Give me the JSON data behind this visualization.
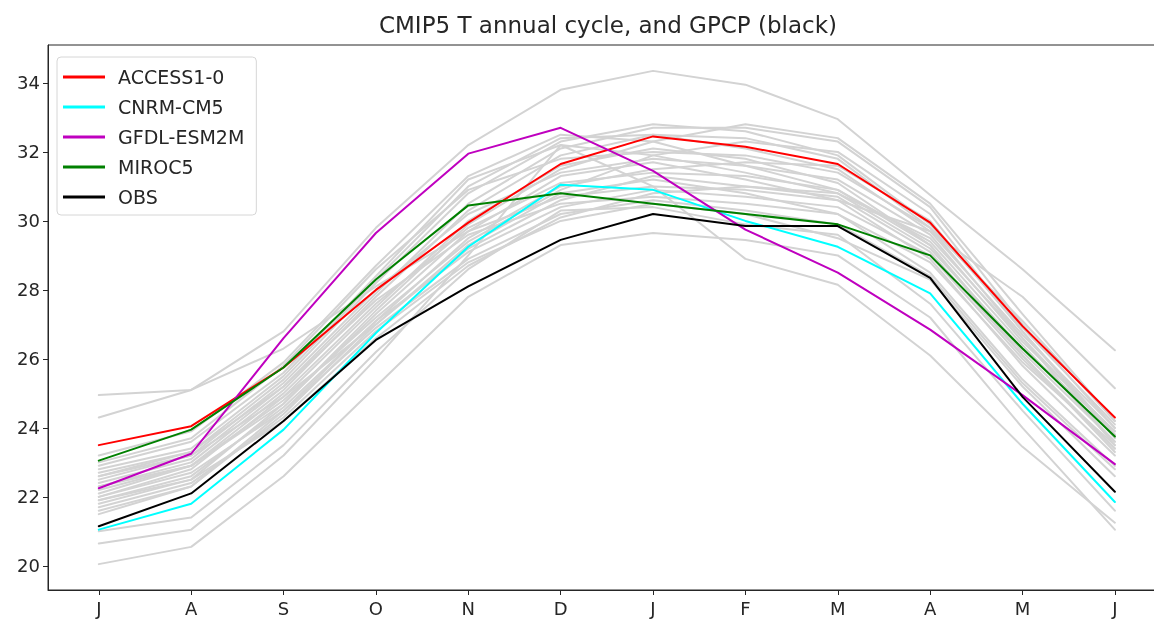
{
  "chart_data": {
    "type": "line",
    "title": "CMIP5 T annual cycle, and GPCP (black)",
    "categories": [
      "J",
      "A",
      "S",
      "O",
      "N",
      "D",
      "J",
      "F",
      "M",
      "A",
      "M",
      "J"
    ],
    "ylim": [
      19.3,
      35.1
    ],
    "yticks": [
      20,
      22,
      24,
      26,
      28,
      30,
      32,
      34
    ],
    "legend": "top left",
    "series": [
      {
        "color": "#d3d3d3",
        "values": [
          24.3,
          25.1,
          26.8,
          29.8,
          32.2,
          33.8,
          34.35,
          33.95,
          32.95,
          30.75,
          28.6,
          26.25
        ]
      },
      {
        "color": "#d3d3d3",
        "values": [
          24.95,
          25.1,
          26.3,
          28.1,
          29.7,
          30.7,
          31.0,
          30.9,
          30.6,
          29.7,
          27.8,
          25.15
        ]
      },
      {
        "color": "#d3d3d3",
        "values": [
          20.05,
          20.55,
          22.6,
          25.2,
          27.8,
          29.3,
          29.65,
          29.45,
          29.0,
          27.2,
          24.0,
          21.05
        ]
      },
      {
        "color": "#d3d3d3",
        "values": [
          20.65,
          21.05,
          23.2,
          26.0,
          29.0,
          32.2,
          31.0,
          28.9,
          28.15,
          26.1,
          23.45,
          21.25
        ]
      },
      {
        "color": "#d3d3d3",
        "values": [
          21.0,
          21.4,
          23.5,
          26.2,
          28.6,
          30.3,
          30.4,
          29.9,
          29.6,
          27.6,
          24.5,
          21.6
        ]
      },
      {
        "color": "#d3d3d3",
        "values": [
          21.6,
          22.3,
          24.4,
          27.0,
          29.3,
          30.8,
          31.2,
          30.8,
          30.2,
          28.5,
          25.4,
          22.9
        ]
      },
      {
        "color": "#d3d3d3",
        "values": [
          21.8,
          22.5,
          24.7,
          27.3,
          29.7,
          31.3,
          31.7,
          31.2,
          30.6,
          28.9,
          25.8,
          23.2
        ]
      },
      {
        "color": "#d3d3d3",
        "values": [
          21.9,
          22.6,
          24.6,
          27.1,
          29.1,
          30.4,
          30.9,
          30.7,
          30.4,
          29.0,
          26.0,
          23.4
        ]
      },
      {
        "color": "#d3d3d3",
        "values": [
          22.0,
          22.8,
          24.9,
          27.5,
          30.0,
          31.6,
          32.1,
          31.8,
          31.1,
          29.3,
          26.1,
          23.4
        ]
      },
      {
        "color": "#d3d3d3",
        "values": [
          22.1,
          22.9,
          25.0,
          27.6,
          29.8,
          31.1,
          31.4,
          31.3,
          30.9,
          29.4,
          26.4,
          23.6
        ]
      },
      {
        "color": "#d3d3d3",
        "values": [
          22.2,
          22.9,
          24.8,
          27.2,
          29.4,
          30.9,
          31.9,
          32.3,
          32.0,
          30.2,
          26.8,
          23.7
        ]
      },
      {
        "color": "#d3d3d3",
        "values": [
          22.3,
          23.0,
          25.1,
          27.8,
          30.3,
          31.9,
          32.5,
          32.4,
          31.8,
          29.8,
          26.6,
          23.8
        ]
      },
      {
        "color": "#d3d3d3",
        "values": [
          22.4,
          23.1,
          25.2,
          27.9,
          30.5,
          32.1,
          32.7,
          32.7,
          32.3,
          30.4,
          27.0,
          24.0
        ]
      },
      {
        "color": "#d3d3d3",
        "values": [
          22.5,
          23.2,
          25.3,
          28.0,
          30.2,
          31.4,
          31.8,
          31.6,
          31.2,
          29.6,
          26.5,
          23.9
        ]
      },
      {
        "color": "#d3d3d3",
        "values": [
          22.6,
          23.3,
          25.4,
          28.2,
          30.8,
          32.3,
          32.8,
          32.6,
          31.9,
          29.9,
          26.9,
          24.1
        ]
      },
      {
        "color": "#d3d3d3",
        "values": [
          22.7,
          23.3,
          25.2,
          27.7,
          29.6,
          30.5,
          30.7,
          30.5,
          30.2,
          28.8,
          25.9,
          23.5
        ]
      },
      {
        "color": "#d3d3d3",
        "values": [
          22.8,
          23.4,
          25.5,
          28.3,
          31.0,
          32.4,
          32.5,
          32.1,
          31.5,
          29.7,
          26.7,
          24.0
        ]
      },
      {
        "color": "#d3d3d3",
        "values": [
          22.9,
          23.6,
          25.6,
          28.4,
          31.2,
          32.2,
          31.9,
          31.4,
          30.8,
          29.2,
          26.3,
          23.9
        ]
      },
      {
        "color": "#d3d3d3",
        "values": [
          22.0,
          22.7,
          24.5,
          26.9,
          28.9,
          30.2,
          30.6,
          30.3,
          29.9,
          28.4,
          25.3,
          22.8
        ]
      },
      {
        "color": "#d3d3d3",
        "values": [
          21.7,
          22.4,
          24.3,
          26.8,
          28.8,
          30.0,
          30.5,
          30.2,
          29.5,
          28.3,
          25.2,
          22.6
        ]
      },
      {
        "color": "#d3d3d3",
        "values": [
          23.0,
          23.7,
          25.8,
          28.6,
          30.9,
          31.8,
          32.0,
          31.9,
          31.4,
          29.8,
          27.1,
          24.2
        ]
      },
      {
        "color": "#d3d3d3",
        "values": [
          22.3,
          22.9,
          24.7,
          27.4,
          29.9,
          31.5,
          32.3,
          32.8,
          32.4,
          30.5,
          27.3,
          24.2
        ]
      },
      {
        "color": "#d3d3d3",
        "values": [
          21.5,
          22.3,
          24.5,
          27.1,
          29.5,
          31.0,
          31.5,
          31.7,
          31.6,
          30.0,
          26.8,
          23.8
        ]
      },
      {
        "color": "#d3d3d3",
        "values": [
          23.2,
          23.9,
          25.9,
          28.7,
          31.3,
          32.5,
          32.3,
          31.6,
          30.9,
          29.3,
          26.2,
          23.6
        ]
      },
      {
        "color": "#d3d3d3",
        "values": [
          22.6,
          23.2,
          24.9,
          27.0,
          29.2,
          30.6,
          31.3,
          31.0,
          30.7,
          29.1,
          26.1,
          23.3
        ]
      },
      {
        "color": "#d3d3d3",
        "values": [
          21.9,
          22.5,
          24.2,
          26.6,
          28.7,
          30.1,
          30.8,
          31.0,
          30.8,
          29.5,
          26.6,
          23.5
        ]
      },
      {
        "name": "ACCESS1-0",
        "color": "#ff0000",
        "values": [
          23.5,
          24.05,
          25.75,
          28.0,
          29.95,
          31.65,
          32.45,
          32.15,
          31.65,
          29.95,
          26.95,
          24.3
        ]
      },
      {
        "name": "CNRM-CM5",
        "color": "#00ffff",
        "values": [
          21.05,
          21.8,
          23.95,
          26.75,
          29.25,
          31.05,
          30.9,
          30.0,
          29.25,
          27.9,
          24.7,
          21.85
        ]
      },
      {
        "name": "GFDL-ESM2M",
        "color": "#bf00bf",
        "values": [
          22.25,
          23.25,
          26.6,
          29.65,
          31.95,
          32.7,
          31.45,
          29.75,
          28.5,
          26.85,
          24.95,
          22.95
        ]
      },
      {
        "name": "MIROC5",
        "color": "#008000",
        "values": [
          23.05,
          23.95,
          25.75,
          28.3,
          30.45,
          30.8,
          30.5,
          30.2,
          29.9,
          29.0,
          26.3,
          23.75
        ]
      },
      {
        "name": "OBS",
        "color": "#000000",
        "values": [
          21.15,
          22.1,
          24.2,
          26.55,
          28.1,
          29.45,
          30.2,
          29.85,
          29.85,
          28.35,
          24.9,
          22.15
        ]
      }
    ]
  }
}
